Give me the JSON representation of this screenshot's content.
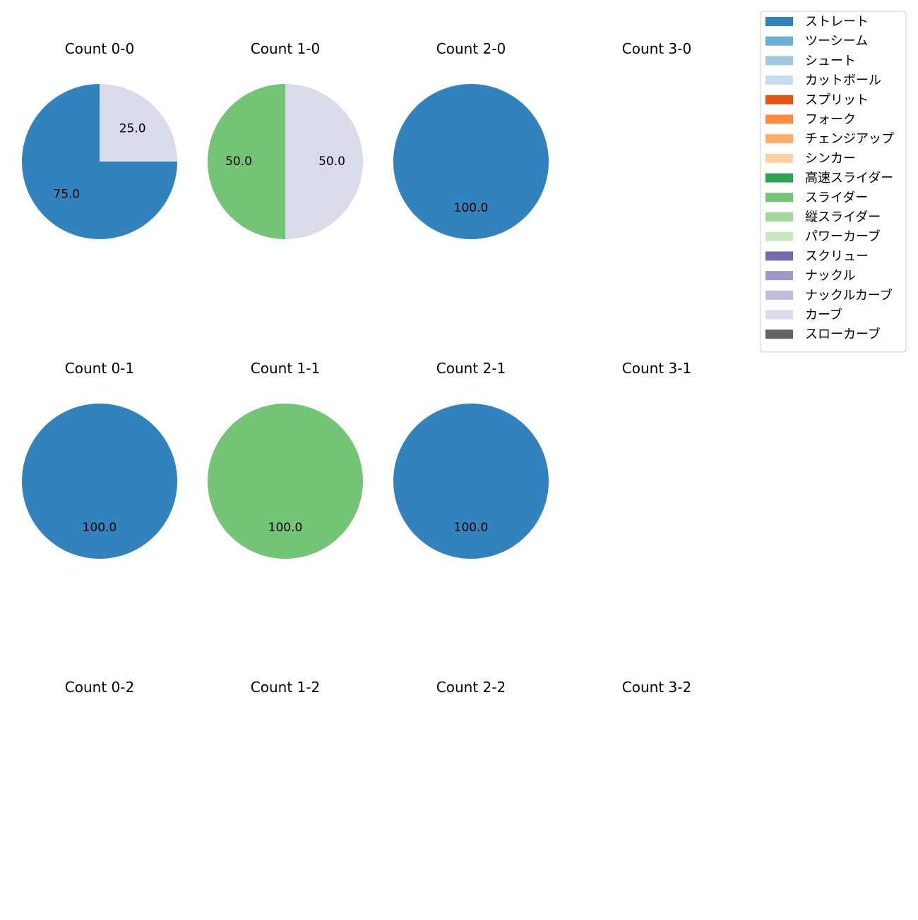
{
  "chart_data": {
    "type": "pie",
    "legend_position": "top-right",
    "legend": [
      {
        "name": "ストレート",
        "color": "#3182bd"
      },
      {
        "name": "ツーシーム",
        "color": "#6baed6"
      },
      {
        "name": "シュート",
        "color": "#9ecae1"
      },
      {
        "name": "カットボール",
        "color": "#c6dbef"
      },
      {
        "name": "スプリット",
        "color": "#e6550d"
      },
      {
        "name": "フォーク",
        "color": "#fd8d3c"
      },
      {
        "name": "チェンジアップ",
        "color": "#fdae6b"
      },
      {
        "name": "シンカー",
        "color": "#fdd0a2"
      },
      {
        "name": "高速スライダー",
        "color": "#31a354"
      },
      {
        "name": "スライダー",
        "color": "#74c476"
      },
      {
        "name": "縦スライダー",
        "color": "#a1d99b"
      },
      {
        "name": "パワーカーブ",
        "color": "#c7e9c0"
      },
      {
        "name": "スクリュー",
        "color": "#756bb1"
      },
      {
        "name": "ナックル",
        "color": "#9e9ac8"
      },
      {
        "name": "ナックルカーブ",
        "color": "#bcbddc"
      },
      {
        "name": "カーブ",
        "color": "#dadaeb"
      },
      {
        "name": "スローカーブ",
        "color": "#636363"
      }
    ],
    "panels": [
      {
        "title": "Count 0-0",
        "slices": [
          {
            "pitch": "ストレート",
            "value": 75.0,
            "label": "75.0"
          },
          {
            "pitch": "カーブ",
            "value": 25.0,
            "label": "25.0"
          }
        ]
      },
      {
        "title": "Count 1-0",
        "slices": [
          {
            "pitch": "スライダー",
            "value": 50.0,
            "label": "50.0"
          },
          {
            "pitch": "カーブ",
            "value": 50.0,
            "label": "50.0"
          }
        ]
      },
      {
        "title": "Count 2-0",
        "slices": [
          {
            "pitch": "ストレート",
            "value": 100.0,
            "label": "100.0"
          }
        ]
      },
      {
        "title": "Count 3-0",
        "slices": []
      },
      {
        "title": "Count 0-1",
        "slices": [
          {
            "pitch": "ストレート",
            "value": 100.0,
            "label": "100.0"
          }
        ]
      },
      {
        "title": "Count 1-1",
        "slices": [
          {
            "pitch": "スライダー",
            "value": 100.0,
            "label": "100.0"
          }
        ]
      },
      {
        "title": "Count 2-1",
        "slices": [
          {
            "pitch": "ストレート",
            "value": 100.0,
            "label": "100.0"
          }
        ]
      },
      {
        "title": "Count 3-1",
        "slices": []
      },
      {
        "title": "Count 0-2",
        "slices": []
      },
      {
        "title": "Count 1-2",
        "slices": []
      },
      {
        "title": "Count 2-2",
        "slices": []
      },
      {
        "title": "Count 3-2",
        "slices": []
      }
    ]
  }
}
